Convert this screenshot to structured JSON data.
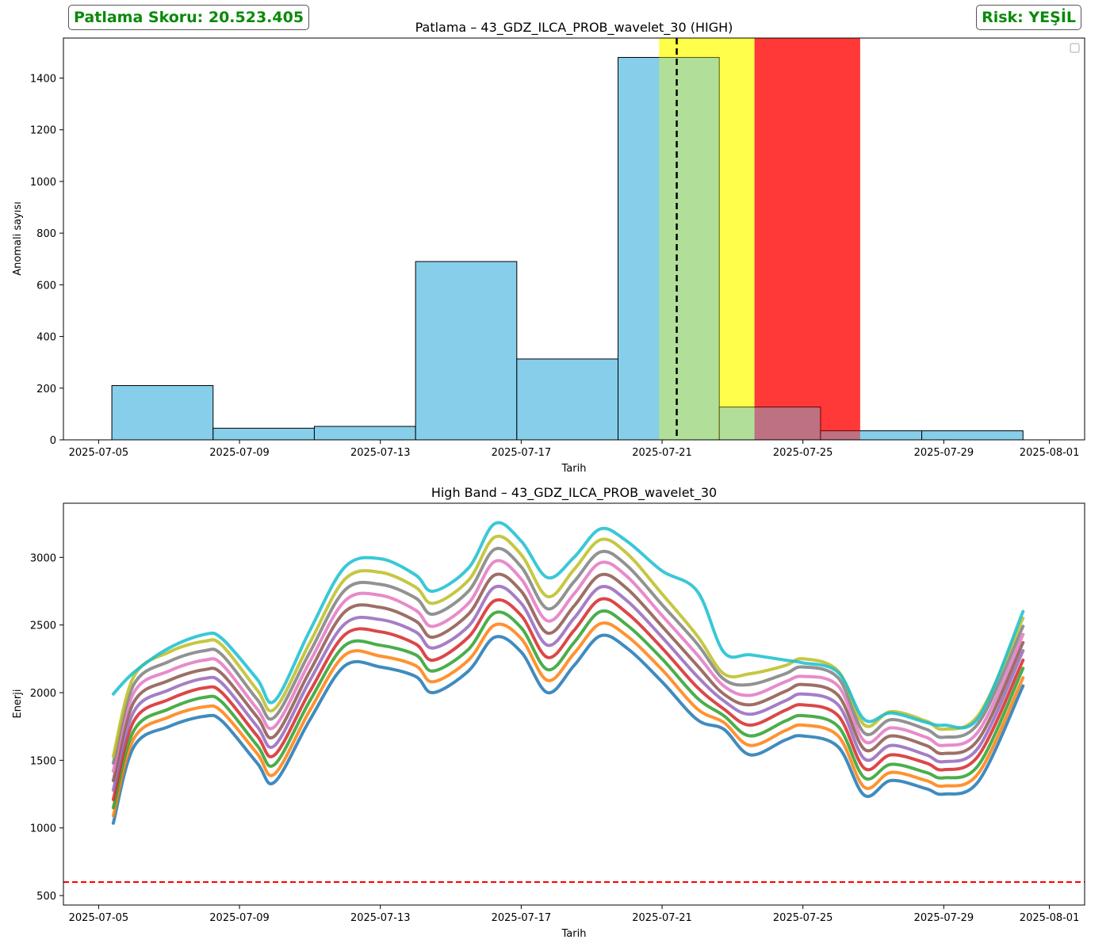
{
  "score_badge": "Patlama Skoru: 20.523.405",
  "risk_badge": "Risk: YEŞİL",
  "colors": {
    "bar_fill": "#87ceeb",
    "warning_zone": "#ffff00",
    "danger_zone": "#ff0000",
    "threshold_line": "#ff0000",
    "event_line": "#000000",
    "risk_text": "#008000"
  },
  "chart_data": [
    {
      "type": "bar",
      "title": "Patlama – 43_GDZ_ILCA_PROB_wavelet_30 (HIGH)",
      "xlabel": "Tarih",
      "ylabel": "Anomali sayısı",
      "xlim": [
        "2025-07-04",
        "2025-08-02"
      ],
      "ylim": [
        0,
        1555
      ],
      "xticks": [
        "2025-07-05",
        "2025-07-09",
        "2025-07-13",
        "2025-07-17",
        "2025-07-21",
        "2025-07-25",
        "2025-07-29",
        "2025-08-01"
      ],
      "yticks": [
        0,
        200,
        400,
        600,
        800,
        1000,
        1200,
        1400
      ],
      "legend": "top-right (empty)",
      "bins": [
        {
          "start": "2025-07-05 09:00",
          "end": "2025-07-08 06:00",
          "value": 210
        },
        {
          "start": "2025-07-08 06:00",
          "end": "2025-07-11 03:00",
          "value": 45
        },
        {
          "start": "2025-07-11 03:00",
          "end": "2025-07-14 00:00",
          "value": 52
        },
        {
          "start": "2025-07-14 00:00",
          "end": "2025-07-16 21:00",
          "value": 690
        },
        {
          "start": "2025-07-16 21:00",
          "end": "2025-07-19 18:00",
          "value": 313
        },
        {
          "start": "2025-07-19 18:00",
          "end": "2025-07-22 15:00",
          "value": 1480
        },
        {
          "start": "2025-07-22 15:00",
          "end": "2025-07-25 12:00",
          "value": 127
        },
        {
          "start": "2025-07-25 12:00",
          "end": "2025-07-28 09:00",
          "value": 35
        },
        {
          "start": "2025-07-28 09:00",
          "end": "2025-07-31 06:00",
          "value": 35
        }
      ],
      "zones": [
        {
          "color": "yellow",
          "start": "2025-07-20 22:00",
          "end": "2025-07-23 15:00"
        },
        {
          "color": "red",
          "start": "2025-07-23 15:00",
          "end": "2025-07-26 15:00"
        }
      ],
      "event_line": "2025-07-21 10:00"
    },
    {
      "type": "line",
      "title": "High Band – 43_GDZ_ILCA_PROB_wavelet_30",
      "xlabel": "Tarih",
      "ylabel": "Enerji",
      "xlim": [
        "2025-07-04",
        "2025-08-02"
      ],
      "ylim": [
        430,
        3400
      ],
      "xticks": [
        "2025-07-05",
        "2025-07-09",
        "2025-07-13",
        "2025-07-17",
        "2025-07-21",
        "2025-07-25",
        "2025-07-29",
        "2025-08-01"
      ],
      "yticks": [
        500,
        1000,
        1500,
        2000,
        2500,
        3000
      ],
      "threshold": 600,
      "x": [
        "2025-07-05 10:00",
        "2025-07-06 00:00",
        "2025-07-07 00:00",
        "2025-07-08 00:00",
        "2025-07-08 12:00",
        "2025-07-09 12:00",
        "2025-07-10 00:00",
        "2025-07-11 00:00",
        "2025-07-12 00:00",
        "2025-07-13 00:00",
        "2025-07-14 00:00",
        "2025-07-14 12:00",
        "2025-07-15 12:00",
        "2025-07-16 06:00",
        "2025-07-17 00:00",
        "2025-07-17 18:00",
        "2025-07-18 12:00",
        "2025-07-19 06:00",
        "2025-07-20 00:00",
        "2025-07-21 00:00",
        "2025-07-22 00:00",
        "2025-07-22 18:00",
        "2025-07-23 12:00",
        "2025-07-24 12:00",
        "2025-07-25 00:00",
        "2025-07-26 00:00",
        "2025-07-26 18:00",
        "2025-07-27 12:00",
        "2025-07-28 12:00",
        "2025-07-29 00:00",
        "2025-07-30 00:00",
        "2025-07-31 06:00"
      ],
      "series": [
        {
          "color": "#1f77b4",
          "values": [
            1035,
            1600,
            1750,
            1825,
            1790,
            1480,
            1340,
            1800,
            2200,
            2190,
            2120,
            2000,
            2160,
            2410,
            2300,
            2000,
            2200,
            2420,
            2330,
            2080,
            1800,
            1730,
            1540,
            1650,
            1680,
            1600,
            1240,
            1350,
            1290,
            1250,
            1350,
            2050
          ]
        },
        {
          "color": "#ff7f0e",
          "values": [
            1090,
            1660,
            1820,
            1895,
            1860,
            1550,
            1400,
            1870,
            2280,
            2270,
            2200,
            2080,
            2240,
            2500,
            2400,
            2090,
            2290,
            2510,
            2420,
            2170,
            1880,
            1780,
            1610,
            1720,
            1760,
            1680,
            1300,
            1410,
            1350,
            1310,
            1410,
            2110
          ]
        },
        {
          "color": "#2ca02c",
          "values": [
            1150,
            1720,
            1880,
            1965,
            1930,
            1610,
            1470,
            1940,
            2350,
            2350,
            2280,
            2160,
            2320,
            2590,
            2480,
            2170,
            2370,
            2600,
            2500,
            2250,
            1960,
            1830,
            1680,
            1790,
            1830,
            1750,
            1370,
            1470,
            1410,
            1370,
            1470,
            2180
          ]
        },
        {
          "color": "#d62728",
          "values": [
            1210,
            1790,
            1950,
            2035,
            2000,
            1680,
            1540,
            2010,
            2430,
            2450,
            2360,
            2240,
            2410,
            2680,
            2570,
            2260,
            2460,
            2690,
            2590,
            2330,
            2040,
            1880,
            1760,
            1870,
            1910,
            1830,
            1440,
            1540,
            1480,
            1430,
            1540,
            2240
          ]
        },
        {
          "color": "#9467bd",
          "values": [
            1280,
            1860,
            2020,
            2105,
            2070,
            1750,
            1610,
            2090,
            2510,
            2540,
            2450,
            2330,
            2490,
            2780,
            2660,
            2350,
            2550,
            2780,
            2680,
            2410,
            2120,
            1940,
            1840,
            1940,
            1990,
            1910,
            1510,
            1610,
            1540,
            1490,
            1600,
            2310
          ]
        },
        {
          "color": "#8c564b",
          "values": [
            1350,
            1930,
            2090,
            2170,
            2140,
            1820,
            1680,
            2160,
            2600,
            2630,
            2530,
            2410,
            2580,
            2870,
            2750,
            2440,
            2640,
            2870,
            2770,
            2490,
            2200,
            1990,
            1910,
            2010,
            2060,
            1980,
            1580,
            1680,
            1610,
            1550,
            1660,
            2370
          ]
        },
        {
          "color": "#e377c2",
          "values": [
            1420,
            2000,
            2160,
            2240,
            2210,
            1880,
            1750,
            2230,
            2680,
            2720,
            2610,
            2490,
            2660,
            2970,
            2840,
            2530,
            2730,
            2960,
            2860,
            2570,
            2280,
            2050,
            1980,
            2080,
            2120,
            2050,
            1640,
            1740,
            1670,
            1610,
            1720,
            2430
          ]
        },
        {
          "color": "#7f7f7f",
          "values": [
            1480,
            2060,
            2230,
            2310,
            2280,
            1950,
            1820,
            2300,
            2760,
            2800,
            2700,
            2580,
            2750,
            3060,
            2930,
            2620,
            2820,
            3040,
            2940,
            2650,
            2360,
            2100,
            2060,
            2140,
            2190,
            2110,
            1700,
            1800,
            1730,
            1670,
            1780,
            2490
          ]
        },
        {
          "color": "#bcbd22",
          "values": [
            1530,
            2120,
            2300,
            2380,
            2350,
            2020,
            1880,
            2370,
            2840,
            2890,
            2780,
            2660,
            2830,
            3150,
            3020,
            2710,
            2910,
            3130,
            3030,
            2730,
            2420,
            2140,
            2140,
            2200,
            2250,
            2160,
            1760,
            1860,
            1790,
            1730,
            1840,
            2550
          ]
        },
        {
          "color": "#17becf",
          "values": [
            1990,
            2150,
            2330,
            2430,
            2400,
            2100,
            1940,
            2460,
            2930,
            2990,
            2870,
            2750,
            2920,
            3250,
            3120,
            2850,
            3000,
            3210,
            3120,
            2900,
            2750,
            2300,
            2280,
            2240,
            2220,
            2150,
            1800,
            1850,
            1780,
            1760,
            1820,
            2600
          ]
        }
      ]
    }
  ]
}
